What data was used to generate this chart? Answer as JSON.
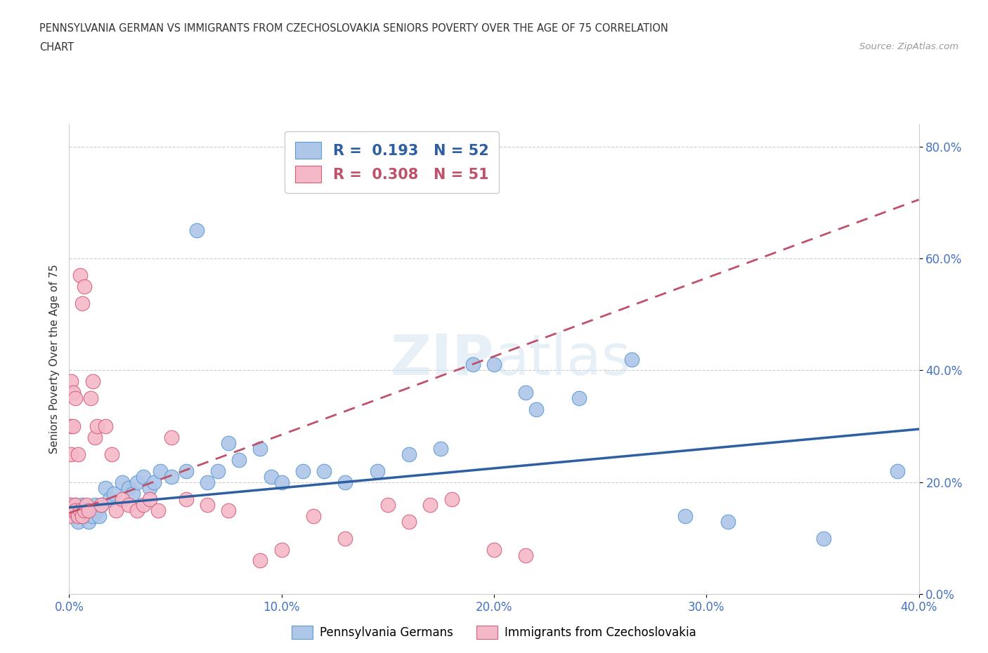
{
  "title_line1": "PENNSYLVANIA GERMAN VS IMMIGRANTS FROM CZECHOSLOVAKIA SENIORS POVERTY OVER THE AGE OF 75 CORRELATION",
  "title_line2": "CHART",
  "source_text": "Source: ZipAtlas.com",
  "ylabel_label": "Seniors Poverty Over the Age of 75",
  "xmin": 0.0,
  "xmax": 0.4,
  "ymin": 0.0,
  "ymax": 0.84,
  "blue_R": 0.193,
  "blue_N": 52,
  "pink_R": 0.308,
  "pink_N": 51,
  "blue_color": "#aec6e8",
  "blue_edge": "#5b9bd5",
  "pink_color": "#f4b8c8",
  "pink_edge": "#d45f7a",
  "blue_line_color": "#2e5fa3",
  "pink_line_color": "#c0516a",
  "tick_color": "#4472c4",
  "legend_label_blue": "Pennsylvania Germans",
  "legend_label_pink": "Immigrants from Czechoslovakia",
  "blue_x": [
    0.001,
    0.002,
    0.003,
    0.004,
    0.005,
    0.006,
    0.007,
    0.008,
    0.009,
    0.01,
    0.011,
    0.012,
    0.013,
    0.014,
    0.015,
    0.017,
    0.019,
    0.021,
    0.025,
    0.028,
    0.03,
    0.032,
    0.035,
    0.038,
    0.04,
    0.043,
    0.048,
    0.055,
    0.06,
    0.065,
    0.07,
    0.075,
    0.08,
    0.09,
    0.095,
    0.1,
    0.11,
    0.12,
    0.13,
    0.145,
    0.16,
    0.175,
    0.19,
    0.2,
    0.215,
    0.22,
    0.24,
    0.265,
    0.29,
    0.31,
    0.355,
    0.39
  ],
  "blue_y": [
    0.15,
    0.14,
    0.16,
    0.13,
    0.15,
    0.16,
    0.14,
    0.15,
    0.13,
    0.15,
    0.14,
    0.16,
    0.15,
    0.14,
    0.16,
    0.19,
    0.17,
    0.18,
    0.2,
    0.19,
    0.18,
    0.2,
    0.21,
    0.19,
    0.2,
    0.22,
    0.21,
    0.22,
    0.65,
    0.2,
    0.22,
    0.27,
    0.24,
    0.26,
    0.21,
    0.2,
    0.22,
    0.22,
    0.2,
    0.22,
    0.25,
    0.26,
    0.41,
    0.41,
    0.36,
    0.33,
    0.35,
    0.42,
    0.14,
    0.13,
    0.1,
    0.22
  ],
  "pink_x": [
    0.0,
    0.0,
    0.0,
    0.001,
    0.001,
    0.001,
    0.001,
    0.002,
    0.002,
    0.002,
    0.003,
    0.003,
    0.003,
    0.004,
    0.004,
    0.005,
    0.005,
    0.006,
    0.006,
    0.007,
    0.007,
    0.008,
    0.009,
    0.01,
    0.011,
    0.012,
    0.013,
    0.015,
    0.017,
    0.02,
    0.022,
    0.025,
    0.028,
    0.032,
    0.035,
    0.038,
    0.042,
    0.048,
    0.055,
    0.065,
    0.075,
    0.09,
    0.1,
    0.115,
    0.13,
    0.15,
    0.16,
    0.17,
    0.18,
    0.2,
    0.215
  ],
  "pink_y": [
    0.16,
    0.15,
    0.14,
    0.38,
    0.3,
    0.25,
    0.16,
    0.36,
    0.3,
    0.15,
    0.16,
    0.35,
    0.15,
    0.14,
    0.25,
    0.57,
    0.15,
    0.52,
    0.14,
    0.15,
    0.55,
    0.16,
    0.15,
    0.35,
    0.38,
    0.28,
    0.3,
    0.16,
    0.3,
    0.25,
    0.15,
    0.17,
    0.16,
    0.15,
    0.16,
    0.17,
    0.15,
    0.28,
    0.17,
    0.16,
    0.15,
    0.06,
    0.08,
    0.14,
    0.1,
    0.16,
    0.13,
    0.16,
    0.17,
    0.08,
    0.07
  ],
  "blue_trendline_x": [
    0.0,
    0.4
  ],
  "blue_trendline_y": [
    0.155,
    0.295
  ],
  "pink_trendline_x": [
    0.0,
    0.4
  ],
  "pink_trendline_y": [
    0.145,
    0.705
  ]
}
